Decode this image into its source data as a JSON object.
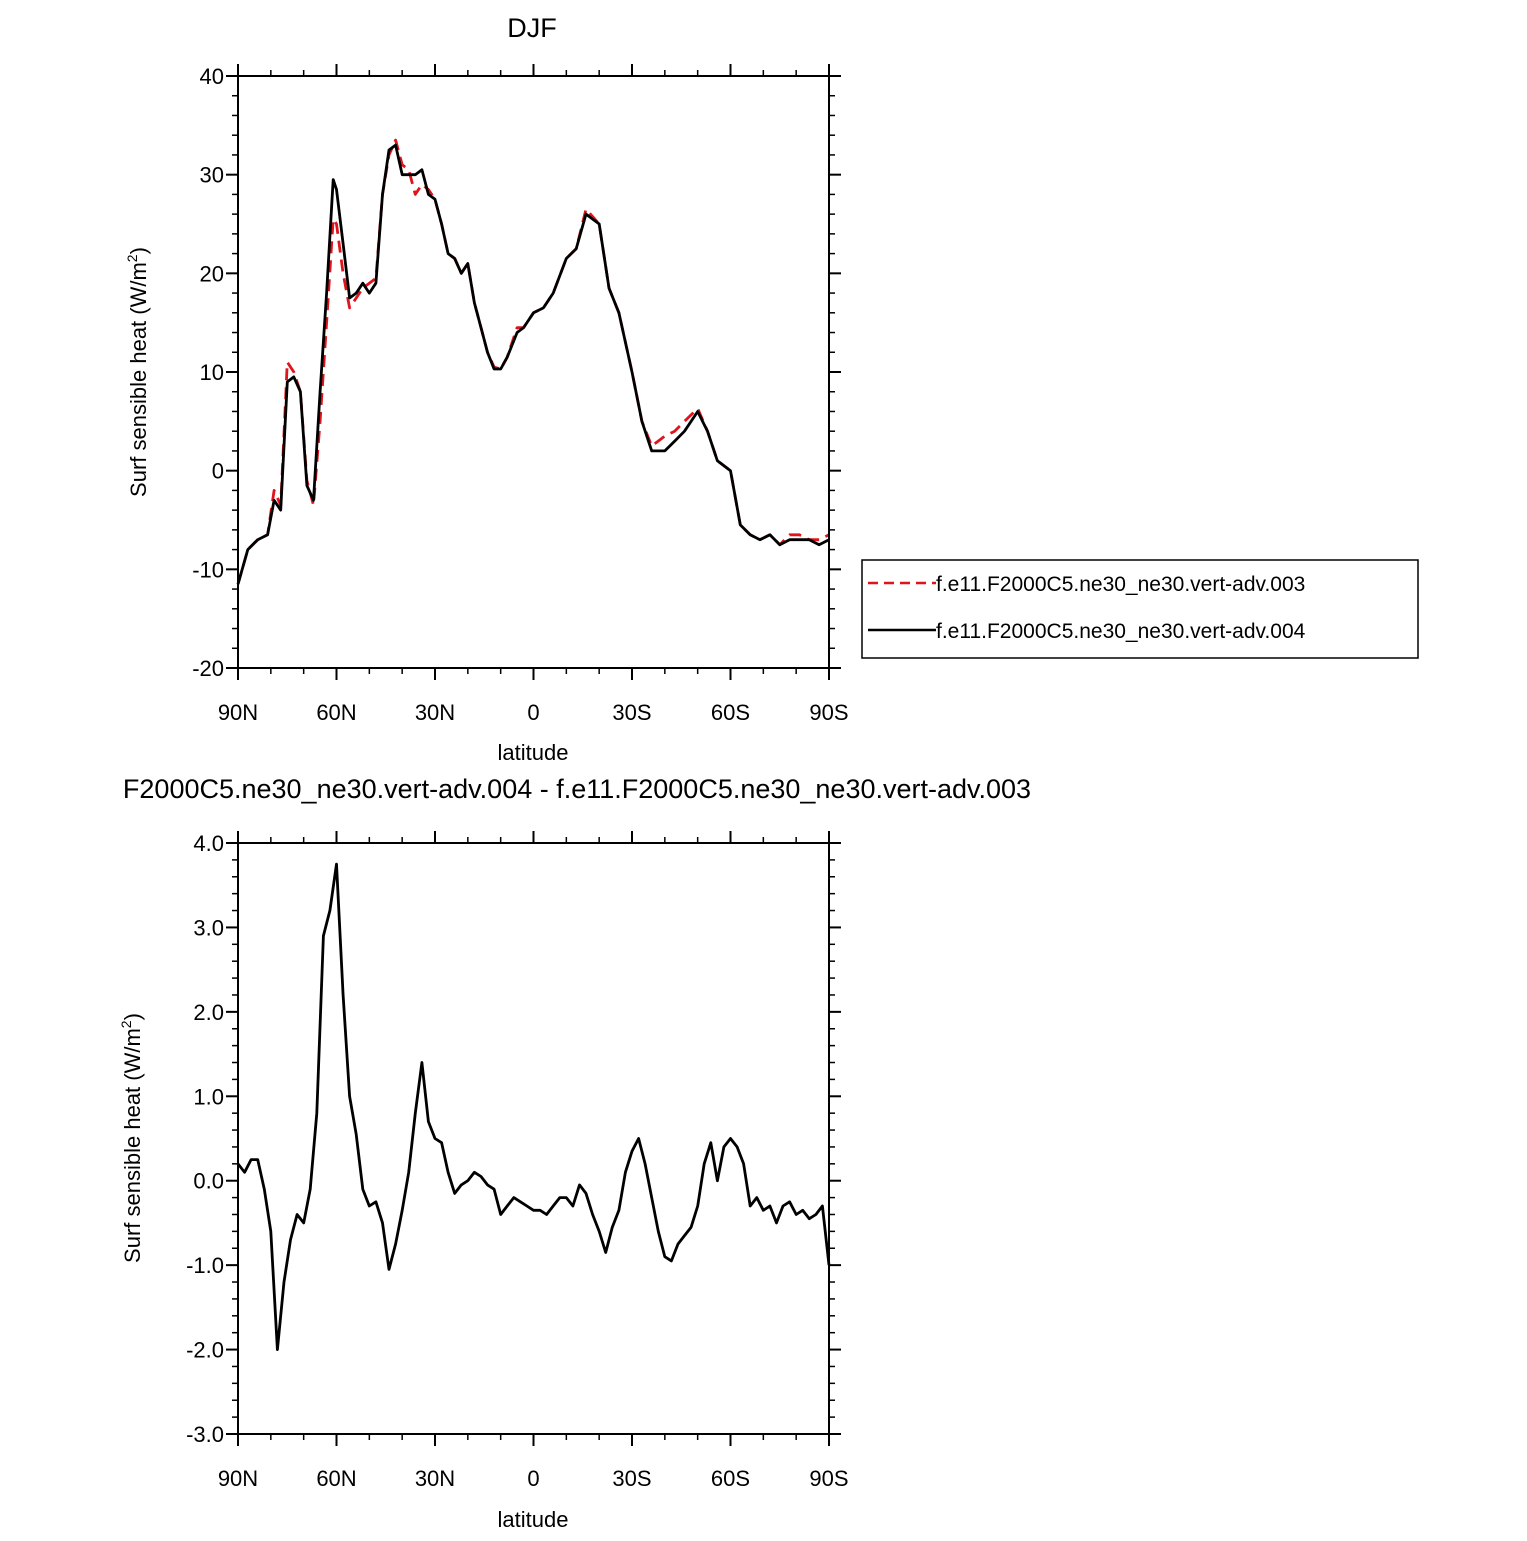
{
  "colors": {
    "exp003": "#e0141c",
    "exp004": "#000000",
    "axes": "#000000"
  },
  "chart_data": [
    {
      "type": "line",
      "title": "DJF",
      "xlabel": "latitude",
      "ylabel": "Surf sensible heat (W/m",
      "ylabel_sup": "2",
      "ylabel_close": ")",
      "xlim": [
        90,
        -90
      ],
      "ylim": [
        -20,
        40
      ],
      "xticks": [
        90,
        60,
        30,
        0,
        -30,
        -60,
        -90
      ],
      "xtick_labels": [
        "90N",
        "60N",
        "30N",
        "0",
        "30S",
        "60S",
        "90S"
      ],
      "yticks": [
        -20,
        -10,
        0,
        10,
        20,
        30,
        40
      ],
      "ytick_labels": [
        "-20",
        "-10",
        "0",
        "10",
        "20",
        "30",
        "40"
      ],
      "legend_placement": "right, outside plot",
      "legend": [
        {
          "label": "f.e11.F2000C5.ne30_ne30.vert-adv.003",
          "style": "dashed",
          "color": "#e0141c"
        },
        {
          "label": "f.e11.F2000C5.ne30_ne30.vert-adv.004",
          "style": "solid",
          "color": "#000000"
        }
      ],
      "series": [
        {
          "name": "f.e11.F2000C5.ne30_ne30.vert-adv.003",
          "x": [
            90,
            87,
            84,
            81,
            79,
            77,
            75,
            73,
            71,
            69,
            67,
            65,
            63,
            61,
            60,
            58,
            56,
            54,
            52,
            50,
            48,
            46,
            44,
            42,
            40,
            38,
            36,
            34,
            32,
            30,
            28,
            26,
            24,
            22,
            20,
            18,
            16,
            14,
            12,
            10,
            8,
            5,
            3,
            0,
            -3,
            -6,
            -10,
            -13,
            -16,
            -20,
            -23,
            -26,
            -30,
            -33,
            -36,
            -40,
            -43,
            -46,
            -50,
            -53,
            -56,
            -60,
            -63,
            -66,
            -69,
            -72,
            -75,
            -78,
            -81,
            -84,
            -87,
            -90
          ],
          "y": [
            -11.5,
            -8.0,
            -7.0,
            -6.5,
            -2.0,
            -3.5,
            11.0,
            10.0,
            8.0,
            -1.0,
            -3.5,
            5.0,
            15.0,
            25.5,
            25.0,
            20.0,
            16.5,
            17.5,
            18.5,
            19.0,
            19.5,
            28.0,
            32.0,
            33.5,
            31.0,
            30.5,
            28.0,
            29.0,
            28.5,
            27.5,
            25.0,
            22.0,
            21.5,
            20.0,
            21.0,
            17.0,
            14.5,
            12.0,
            10.5,
            10.3,
            11.5,
            14.5,
            14.5,
            16.0,
            16.5,
            18.0,
            21.5,
            22.5,
            26.5,
            25.0,
            18.5,
            16.0,
            10.0,
            5.0,
            2.5,
            3.5,
            4.0,
            5.0,
            6.3,
            4.0,
            1.0,
            0.0,
            -5.5,
            -6.5,
            -7.0,
            -6.5,
            -7.5,
            -6.5,
            -6.5,
            -7.0,
            -7.0,
            -6.5
          ]
        },
        {
          "name": "f.e11.F2000C5.ne30_ne30.vert-adv.004",
          "x": [
            90,
            87,
            84,
            81,
            79,
            77,
            75,
            73,
            71,
            69,
            67,
            65,
            63,
            61,
            60,
            58,
            56,
            54,
            52,
            50,
            48,
            46,
            44,
            42,
            40,
            38,
            36,
            34,
            32,
            30,
            28,
            26,
            24,
            22,
            20,
            18,
            16,
            14,
            12,
            10,
            8,
            5,
            3,
            0,
            -3,
            -6,
            -10,
            -13,
            -16,
            -20,
            -23,
            -26,
            -30,
            -33,
            -36,
            -40,
            -43,
            -46,
            -50,
            -53,
            -56,
            -60,
            -63,
            -66,
            -69,
            -72,
            -75,
            -78,
            -81,
            -84,
            -87,
            -90
          ],
          "y": [
            -11.5,
            -8.0,
            -7.0,
            -6.5,
            -3.0,
            -4.0,
            9.0,
            9.5,
            8.0,
            -1.5,
            -3.0,
            8.0,
            18.0,
            29.5,
            28.5,
            23.0,
            17.5,
            18.0,
            19.0,
            18.0,
            19.0,
            28.0,
            32.5,
            33.0,
            30.0,
            30.0,
            30.0,
            30.5,
            28.0,
            27.5,
            25.0,
            22.0,
            21.5,
            20.0,
            21.0,
            17.0,
            14.5,
            12.0,
            10.3,
            10.3,
            11.5,
            14.0,
            14.5,
            16.0,
            16.5,
            18.0,
            21.5,
            22.5,
            26.0,
            25.0,
            18.5,
            16.0,
            10.0,
            5.0,
            2.0,
            2.0,
            3.0,
            4.0,
            6.0,
            4.0,
            1.0,
            0.0,
            -5.5,
            -6.5,
            -7.0,
            -6.5,
            -7.5,
            -7.0,
            -7.0,
            -7.0,
            -7.5,
            -7.0
          ]
        }
      ]
    },
    {
      "type": "line",
      "title": "F2000C5.ne30_ne30.vert-adv.004 - f.e11.F2000C5.ne30_ne30.vert-adv.003",
      "xlabel": "latitude",
      "ylabel": "Surf sensible heat (W/m",
      "ylabel_sup": "2",
      "ylabel_close": ")",
      "xlim": [
        90,
        -90
      ],
      "ylim": [
        -3.0,
        4.0
      ],
      "xticks": [
        90,
        60,
        30,
        0,
        -30,
        -60,
        -90
      ],
      "xtick_labels": [
        "90N",
        "60N",
        "30N",
        "0",
        "30S",
        "60S",
        "90S"
      ],
      "yticks": [
        -3,
        -2,
        -1,
        0,
        1,
        2,
        3,
        4
      ],
      "ytick_labels": [
        "-3.0",
        "-2.0",
        "-1.0",
        "0.0",
        "1.0",
        "2.0",
        "3.0",
        "4.0"
      ],
      "series": [
        {
          "x": [
            90,
            88,
            86,
            84,
            82,
            80,
            78,
            76,
            74,
            72,
            70,
            68,
            66,
            64,
            62,
            60,
            58,
            56,
            54,
            52,
            50,
            48,
            46,
            44,
            42,
            40,
            38,
            36,
            34,
            32,
            30,
            28,
            26,
            24,
            22,
            20,
            18,
            16,
            14,
            12,
            10,
            8,
            6,
            4,
            2,
            0,
            -2,
            -4,
            -6,
            -8,
            -10,
            -12,
            -14,
            -16,
            -18,
            -20,
            -22,
            -24,
            -26,
            -28,
            -30,
            -32,
            -34,
            -36,
            -38,
            -40,
            -42,
            -44,
            -46,
            -48,
            -50,
            -52,
            -54,
            -56,
            -58,
            -60,
            -62,
            -64,
            -66,
            -68,
            -70,
            -72,
            -74,
            -76,
            -78,
            -80,
            -82,
            -84,
            -86,
            -88,
            -90
          ],
          "y": [
            0.2,
            0.1,
            0.25,
            0.25,
            -0.1,
            -0.6,
            -2.0,
            -1.2,
            -0.7,
            -0.4,
            -0.5,
            -0.1,
            0.8,
            2.9,
            3.2,
            3.75,
            2.2,
            1.0,
            0.55,
            -0.1,
            -0.3,
            -0.25,
            -0.5,
            -1.05,
            -0.75,
            -0.35,
            0.1,
            0.8,
            1.4,
            0.7,
            0.5,
            0.45,
            0.1,
            -0.15,
            -0.05,
            0.0,
            0.1,
            0.05,
            -0.05,
            -0.1,
            -0.4,
            -0.3,
            -0.2,
            -0.25,
            -0.3,
            -0.35,
            -0.35,
            -0.4,
            -0.3,
            -0.2,
            -0.2,
            -0.3,
            -0.05,
            -0.15,
            -0.4,
            -0.6,
            -0.85,
            -0.55,
            -0.35,
            0.1,
            0.35,
            0.5,
            0.2,
            -0.2,
            -0.6,
            -0.9,
            -0.95,
            -0.75,
            -0.65,
            -0.55,
            -0.3,
            0.2,
            0.45,
            0.0,
            0.4,
            0.5,
            0.4,
            0.2,
            -0.3,
            -0.2,
            -0.35,
            -0.3,
            -0.5,
            -0.3,
            -0.25,
            -0.4,
            -0.35,
            -0.45,
            -0.4,
            -0.3,
            -1.0
          ]
        }
      ]
    }
  ]
}
